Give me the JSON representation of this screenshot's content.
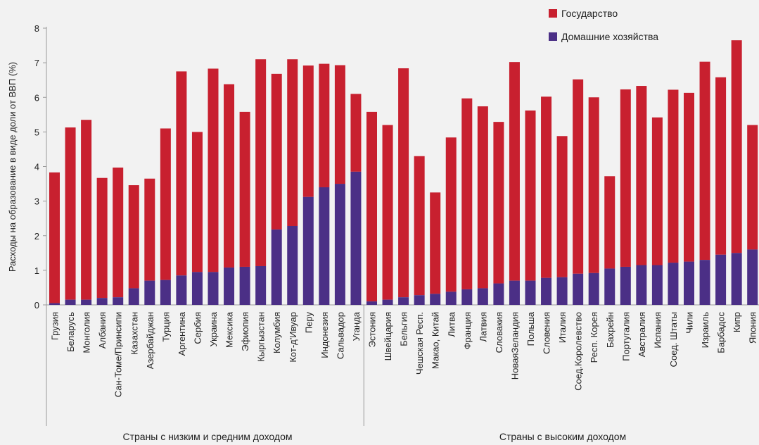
{
  "chart_data": {
    "type": "bar",
    "stacked": true,
    "ylabel": "Расходы на образование в виде доли от ВВП (%)",
    "ylim": [
      0,
      8
    ],
    "yticks": [
      0,
      1,
      2,
      3,
      4,
      5,
      6,
      7,
      8
    ],
    "grid": false,
    "legend_position": "top-right",
    "colors": {
      "government": "#c8202f",
      "households": "#4b2f86",
      "axis": "#999999"
    },
    "legend": [
      "Государство",
      "Домашние хозяйства"
    ],
    "groups": [
      {
        "label": "Страны с низким и средним доходом",
        "categories": [
          "Грузия",
          "Беларусь",
          "Монголия",
          "Албания",
          "Сан-Томе/Принсипи",
          "Казахстан",
          "Азербайджан",
          "Турция",
          "Аргентина",
          "Сербия",
          "Украина",
          "Мексика",
          "Эфиопия",
          "Кыргызстан",
          "Колумбия",
          "Кот-д'Ивуар",
          "Перу",
          "Индонезия",
          "Сальвадор",
          "Уганда"
        ]
      },
      {
        "label": "Страны с высоким доходом",
        "categories": [
          "Эстония",
          "Швейцария",
          "Бельгия",
          "Чешская Респ.",
          "Макао, Китай",
          "Литва",
          "Франция",
          "Латвия",
          "Словакия",
          "НоваяЗеландия",
          "Польша",
          "Словения",
          "Италия",
          "Соед.Королевство",
          "Респ. Корея",
          "Бахрейн",
          "Португалия",
          "Австралия",
          "Испания",
          "Соед. Штаты",
          "Чили",
          "Израиль",
          "Барбадос",
          "Кипр",
          "Япония"
        ]
      }
    ],
    "series": [
      {
        "name": "Домашние хозяйства",
        "values": [
          0.05,
          0.15,
          0.15,
          0.2,
          0.22,
          0.48,
          0.7,
          0.72,
          0.85,
          0.95,
          0.95,
          1.08,
          1.1,
          1.12,
          2.18,
          2.28,
          3.12,
          3.4,
          3.5,
          3.85,
          0.1,
          0.15,
          0.22,
          0.28,
          0.32,
          0.38,
          0.45,
          0.48,
          0.62,
          0.7,
          0.7,
          0.78,
          0.8,
          0.9,
          0.92,
          1.05,
          1.1,
          1.15,
          1.15,
          1.22,
          1.25,
          1.3,
          1.45,
          1.5,
          1.6
        ]
      },
      {
        "name": "Государство",
        "values": [
          3.78,
          4.98,
          5.2,
          3.47,
          3.75,
          2.98,
          2.95,
          4.38,
          5.9,
          4.05,
          5.88,
          5.3,
          4.48,
          5.98,
          4.5,
          4.82,
          3.8,
          3.57,
          3.43,
          2.25,
          5.48,
          5.05,
          6.62,
          4.02,
          2.93,
          4.46,
          5.52,
          5.26,
          4.67,
          6.32,
          4.92,
          5.24,
          4.08,
          5.62,
          5.08,
          2.67,
          5.13,
          5.18,
          4.27,
          5.0,
          4.88,
          5.73,
          5.13,
          6.15,
          3.6
        ]
      }
    ]
  }
}
